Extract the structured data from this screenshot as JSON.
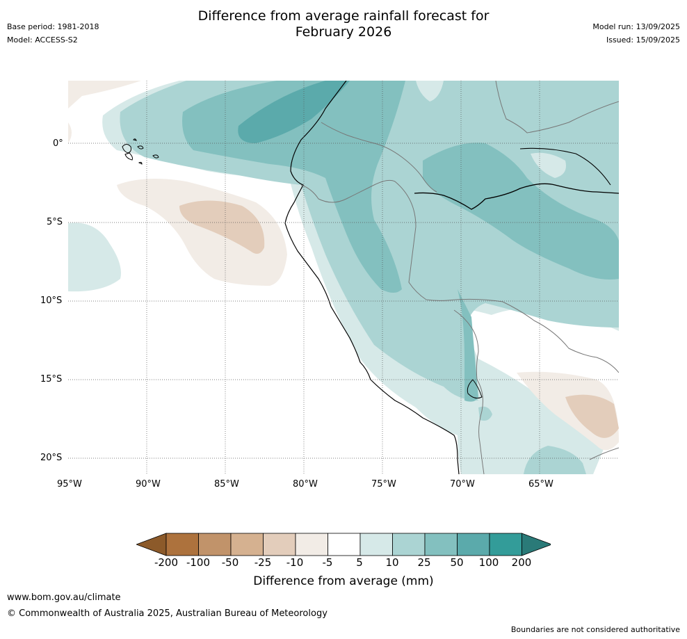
{
  "header": {
    "title_line1": "Difference from average rainfall forecast for",
    "title_line2": "February 2026",
    "base_period": "Base period: 1981-2018",
    "model": "Model: ACCESS-S2",
    "model_run": "Model run: 13/09/2025",
    "issued": "Issued: 15/09/2025"
  },
  "map": {
    "lat_labels": [
      "0°",
      "5°S",
      "10°S",
      "15°S",
      "20°S"
    ],
    "lon_labels": [
      "95°W",
      "90°W",
      "85°W",
      "80°W",
      "75°W",
      "70°W",
      "65°W"
    ],
    "grid": true
  },
  "colorbar": {
    "title": "Difference from average (mm)",
    "tick_labels": [
      "-200",
      "-100",
      "-50",
      "-25",
      "-10",
      "-5",
      "5",
      "10",
      "25",
      "50",
      "100",
      "200"
    ],
    "colors": [
      "#8c5a2a",
      "#ad723d",
      "#c1936a",
      "#d5b190",
      "#e3cdbb",
      "#f2ece6",
      "#ffffff",
      "#d6e9e8",
      "#abd4d3",
      "#83c0bf",
      "#5baaab",
      "#339c99",
      "#2a7a78"
    ]
  },
  "footer": {
    "website": "www.bom.gov.au/climate",
    "copyright": "© Commonwealth of Australia 2025, Australian Bureau of Meteorology",
    "disclaimer": "Boundaries are not considered authoritative"
  }
}
